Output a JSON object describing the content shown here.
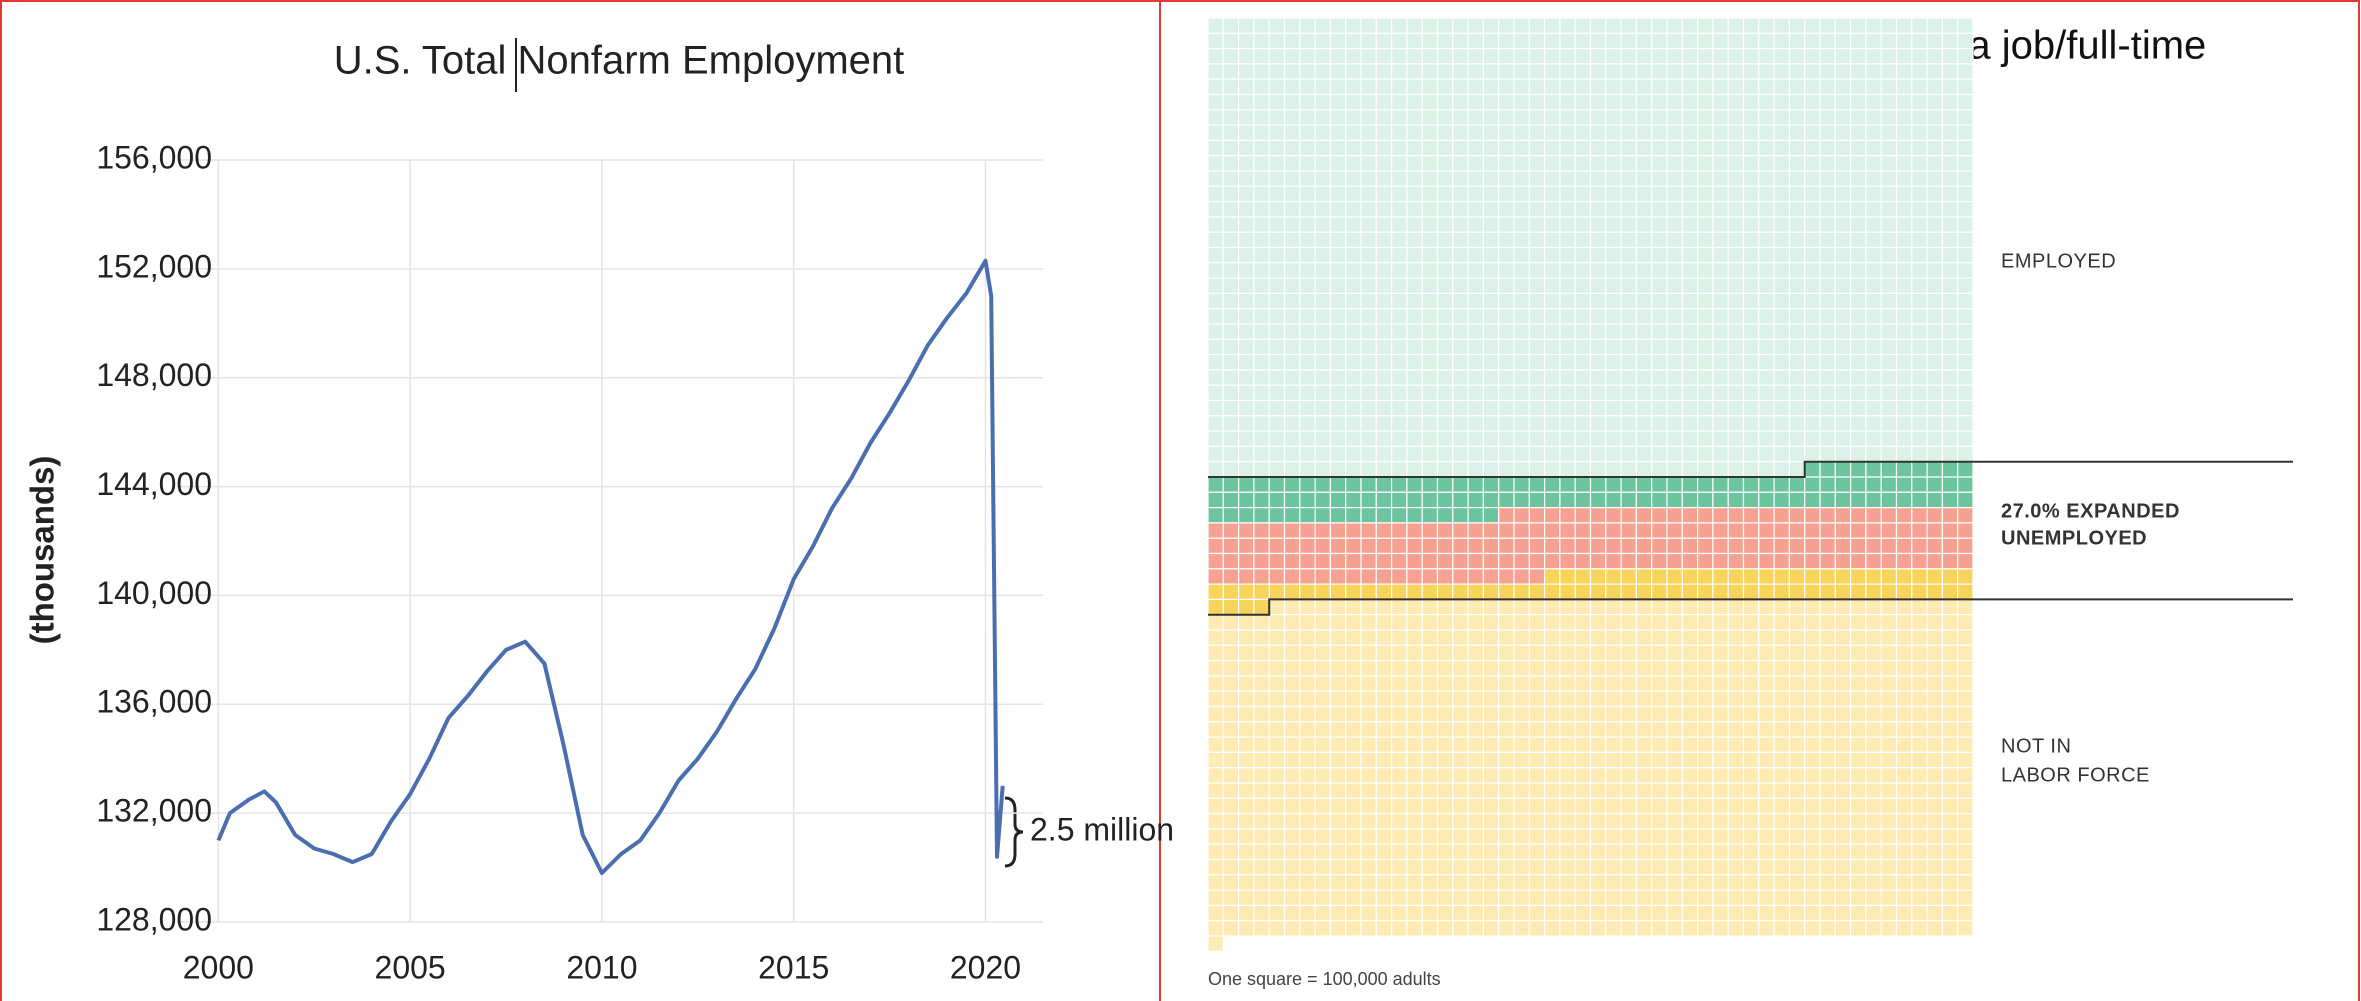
{
  "chart_data": [
    {
      "type": "line",
      "title": "U.S. Total Nonfarm Employment",
      "y_label": "(thousands)",
      "annotation": "2.5 million",
      "xlim": [
        1999,
        2021.5
      ],
      "xticks": [
        2000,
        2005,
        2010,
        2015,
        2020
      ],
      "ylim": [
        128000,
        156000
      ],
      "yticks": [
        {
          "value": 128000,
          "label": "128,000"
        },
        {
          "value": 132000,
          "label": "132,000"
        },
        {
          "value": 136000,
          "label": "136,000"
        },
        {
          "value": 140000,
          "label": "140,000"
        },
        {
          "value": 144000,
          "label": "144,000"
        },
        {
          "value": 148000,
          "label": "148,000"
        },
        {
          "value": 152000,
          "label": "152,000"
        },
        {
          "value": 156000,
          "label": "156,000"
        }
      ],
      "grid": true,
      "series": [
        {
          "color": "#4a6fb0",
          "x": [
            2000.0,
            2000.3,
            2000.8,
            2001.2,
            2001.5,
            2002.0,
            2002.5,
            2003.0,
            2003.5,
            2004.0,
            2004.5,
            2005.0,
            2005.5,
            2006.0,
            2006.5,
            2007.0,
            2007.5,
            2008.0,
            2008.5,
            2009.0,
            2009.5,
            2010.0,
            2010.5,
            2011.0,
            2011.5,
            2012.0,
            2012.5,
            2013.0,
            2013.5,
            2014.0,
            2014.5,
            2015.0,
            2015.5,
            2016.0,
            2016.5,
            2017.0,
            2017.5,
            2018.0,
            2018.5,
            2019.0,
            2019.5,
            2020.0,
            2020.15,
            2020.3,
            2020.45
          ],
          "values": [
            131000,
            132000,
            132500,
            132800,
            132400,
            131200,
            130700,
            130500,
            130200,
            130500,
            131700,
            132700,
            134000,
            135500,
            136300,
            137200,
            138000,
            138300,
            137500,
            134500,
            131200,
            129800,
            130500,
            131000,
            132000,
            133200,
            134000,
            135000,
            136200,
            137300,
            138800,
            140600,
            141800,
            143200,
            144300,
            145600,
            146700,
            147900,
            149200,
            150200,
            151100,
            152300,
            151000,
            130400,
            133000
          ]
        }
      ]
    },
    {
      "type": "waffle",
      "title": "Unemployed; temporary layoff; want a job/full-time",
      "footnote": "One square = 100,000 adults",
      "columns": 50,
      "segments": [
        {
          "color": "#dcf1e8",
          "count": 1489
        },
        {
          "color": "#6cc59e",
          "count": 130
        },
        {
          "color": "#f7a193",
          "count": 203
        },
        {
          "color": "#f8d45a",
          "count": 82
        },
        {
          "color": "#fdebb3",
          "count": 1097
        }
      ],
      "labels": [
        [
          "EMPLOYED"
        ],
        [
          "27.0% EXPANDED",
          "UNEMPLOYED"
        ],
        [
          "NOT IN",
          "LABOR FORCE"
        ]
      ]
    }
  ]
}
